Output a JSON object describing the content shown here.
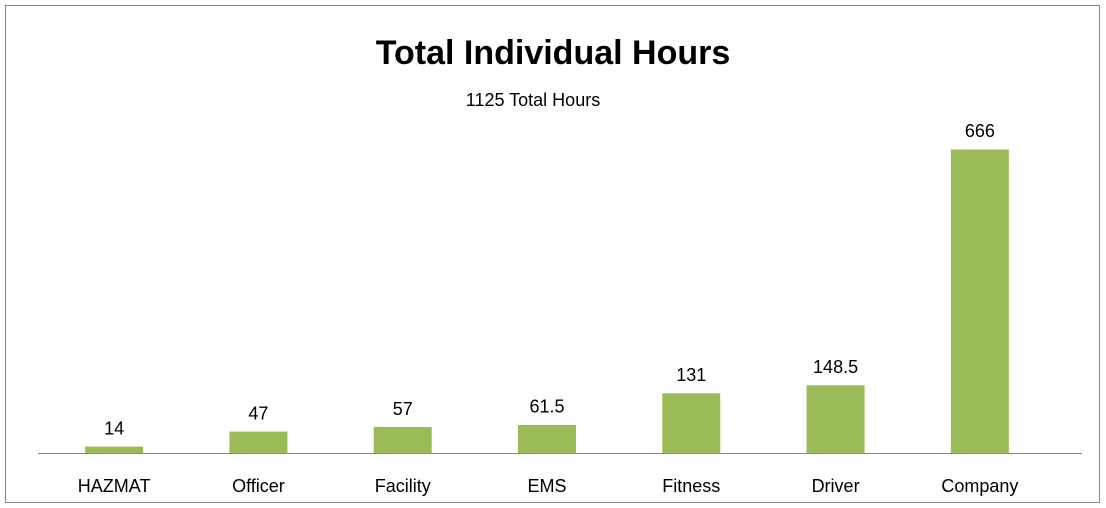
{
  "chart_data": {
    "type": "bar",
    "title": "Total Individual Hours",
    "subtitle": "1125 Total Hours",
    "categories": [
      "HAZMAT",
      "Officer",
      "Facility",
      "EMS",
      "Fitness",
      "Driver",
      "Company"
    ],
    "values": [
      14,
      47,
      57,
      61.5,
      131,
      148.5,
      666
    ],
    "color": "#9bbb59",
    "ylim": [
      0,
      700
    ]
  }
}
